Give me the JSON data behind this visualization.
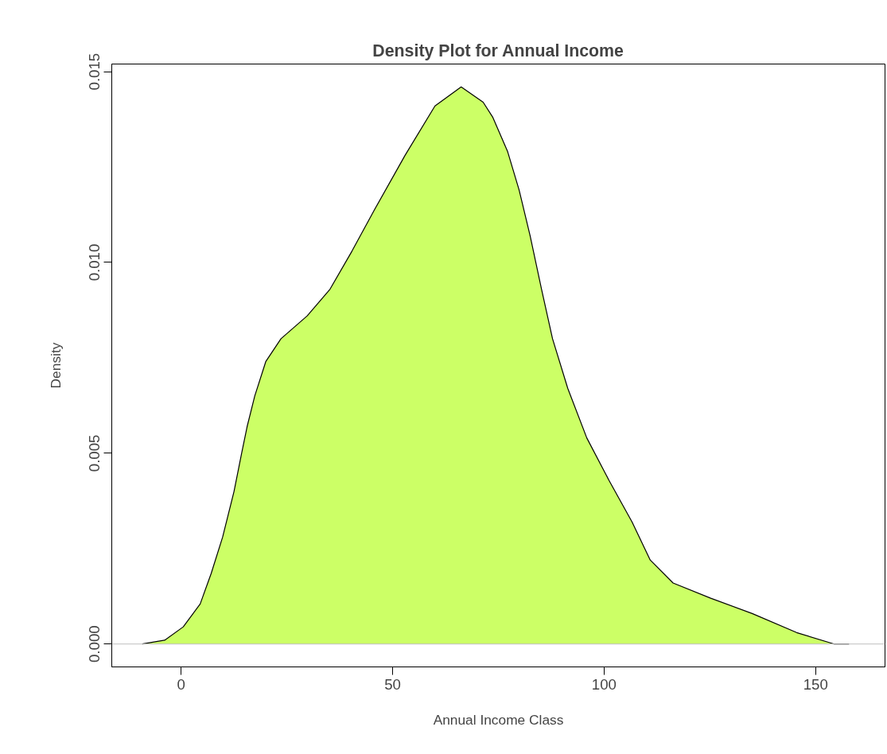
{
  "chart_data": {
    "type": "area",
    "title": "Density Plot for Annual Income",
    "xlabel": "Annual Income Class",
    "ylabel": "Density",
    "x": [
      -9.2,
      -3.9,
      0.5,
      4.5,
      7.1,
      9.8,
      12.5,
      14.3,
      15.6,
      17.4,
      20.0,
      23.6,
      29.8,
      35.2,
      40.4,
      45.8,
      52.9,
      60.0,
      66.2,
      71.4,
      73.7,
      77.2,
      79.9,
      82.5,
      85.2,
      87.8,
      91.4,
      95.9,
      101.1,
      106.6,
      110.9,
      116.3,
      125.2,
      135.0,
      145.5,
      154.4,
      157.9
    ],
    "series": [
      {
        "color": "#ccff66",
        "values": [
          0,
          0.0001,
          0.00045,
          0.00105,
          0.00185,
          0.0028,
          0.004,
          0.005,
          0.0057,
          0.0065,
          0.0074,
          0.008,
          0.0086,
          0.0093,
          0.0103,
          0.0114,
          0.0128,
          0.0141,
          0.0146,
          0.0142,
          0.0138,
          0.0129,
          0.0119,
          0.0107,
          0.0093,
          0.008,
          0.0067,
          0.0054,
          0.0043,
          0.0032,
          0.0022,
          0.0016,
          0.0012,
          0.0008,
          0.0003,
          0,
          0
        ]
      }
    ],
    "xlim": [
      -16.4,
      166.4
    ],
    "ylim": [
      -0.0006,
      0.0152
    ],
    "xticks": [
      0,
      50,
      100,
      150
    ],
    "yticks": [
      {
        "value": 0,
        "label": "0.000"
      },
      {
        "value": 0.005,
        "label": "0.005"
      },
      {
        "value": 0.01,
        "label": "0.010"
      },
      {
        "value": 0.015,
        "label": "0.015"
      }
    ],
    "ref_lines": [
      {
        "axis": "y",
        "value": 0,
        "color": "#bebebe"
      }
    ],
    "grid": false
  }
}
